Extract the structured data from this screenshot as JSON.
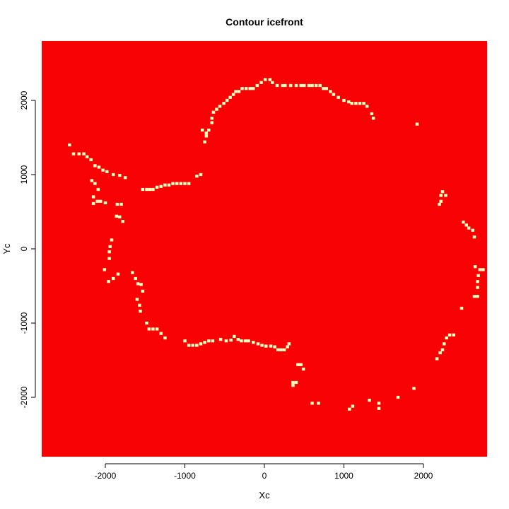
{
  "chart_data": {
    "type": "heatmap",
    "title": "Contour icefront",
    "xlabel": "Xc",
    "ylabel": "Yc",
    "xlim": [
      -2800,
      2800
    ],
    "ylim": [
      -2800,
      2800
    ],
    "x_ticks": [
      -2000,
      -1000,
      0,
      1000,
      2000
    ],
    "y_ticks": [
      -2000,
      -1000,
      0,
      1000,
      2000
    ],
    "x_tick_labels": [
      "-2000",
      "-1000",
      "0",
      "1000",
      "2000"
    ],
    "y_tick_labels": [
      "-2000",
      "-1000",
      "0",
      "1000",
      "2000"
    ],
    "background_color": "#F90206",
    "contour_color": "#FFFFBF",
    "cell_size": 40,
    "contour_cells": [
      [
        -2450,
        1400
      ],
      [
        -2400,
        1280
      ],
      [
        -2330,
        1280
      ],
      [
        -2270,
        1280
      ],
      [
        -2230,
        1240
      ],
      [
        -2180,
        1200
      ],
      [
        -2130,
        1120
      ],
      [
        -2080,
        1100
      ],
      [
        -2030,
        1060
      ],
      [
        -1980,
        1040
      ],
      [
        -1900,
        1000
      ],
      [
        -1820,
        990
      ],
      [
        -1750,
        960
      ],
      [
        -2170,
        920
      ],
      [
        -2130,
        880
      ],
      [
        -2090,
        800
      ],
      [
        -2150,
        700
      ],
      [
        -2150,
        610
      ],
      [
        -2100,
        640
      ],
      [
        -2060,
        640
      ],
      [
        -2000,
        620
      ],
      [
        -1850,
        600
      ],
      [
        -1800,
        600
      ],
      [
        -1860,
        440
      ],
      [
        -1820,
        430
      ],
      [
        -1780,
        370
      ],
      [
        -1920,
        120
      ],
      [
        -1940,
        30
      ],
      [
        -1950,
        -40
      ],
      [
        -1950,
        -130
      ],
      [
        -2010,
        -280
      ],
      [
        -1960,
        -440
      ],
      [
        -1900,
        -400
      ],
      [
        -1840,
        -340
      ],
      [
        -1660,
        -320
      ],
      [
        -1620,
        -400
      ],
      [
        -1590,
        -470
      ],
      [
        -1550,
        -480
      ],
      [
        -1530,
        -570
      ],
      [
        -1600,
        -680
      ],
      [
        -1570,
        -760
      ],
      [
        -1560,
        -840
      ],
      [
        -1480,
        -1000
      ],
      [
        -1450,
        -1080
      ],
      [
        -1400,
        -1080
      ],
      [
        -1350,
        -1080
      ],
      [
        -1300,
        -1140
      ],
      [
        -1250,
        -1200
      ],
      [
        -1000,
        -1240
      ],
      [
        -950,
        -1300
      ],
      [
        -900,
        -1300
      ],
      [
        -850,
        -1300
      ],
      [
        -800,
        -1280
      ],
      [
        -750,
        -1260
      ],
      [
        -700,
        -1240
      ],
      [
        -650,
        -1240
      ],
      [
        -550,
        -1220
      ],
      [
        -480,
        -1240
      ],
      [
        -420,
        -1230
      ],
      [
        -380,
        -1180
      ],
      [
        -330,
        -1220
      ],
      [
        -290,
        -1240
      ],
      [
        -240,
        -1240
      ],
      [
        -200,
        -1240
      ],
      [
        -140,
        -1260
      ],
      [
        -80,
        -1280
      ],
      [
        -30,
        -1300
      ],
      [
        20,
        -1310
      ],
      [
        80,
        -1310
      ],
      [
        130,
        -1320
      ],
      [
        170,
        -1360
      ],
      [
        210,
        -1360
      ],
      [
        250,
        -1360
      ],
      [
        290,
        -1320
      ],
      [
        310,
        -1280
      ],
      [
        420,
        -1560
      ],
      [
        460,
        -1560
      ],
      [
        490,
        -1620
      ],
      [
        360,
        -1800
      ],
      [
        400,
        -1800
      ],
      [
        360,
        -1840
      ],
      [
        600,
        -2080
      ],
      [
        680,
        -2080
      ],
      [
        1070,
        -2160
      ],
      [
        1110,
        -2120
      ],
      [
        1320,
        -2040
      ],
      [
        1440,
        -2080
      ],
      [
        1440,
        -2150
      ],
      [
        1680,
        -2000
      ],
      [
        1880,
        -1880
      ],
      [
        2170,
        -1480
      ],
      [
        2210,
        -1400
      ],
      [
        2240,
        -1360
      ],
      [
        2260,
        -1280
      ],
      [
        2290,
        -1200
      ],
      [
        2330,
        -1160
      ],
      [
        2380,
        -1160
      ],
      [
        2480,
        -800
      ],
      [
        2640,
        -640
      ],
      [
        2680,
        -640
      ],
      [
        2680,
        -520
      ],
      [
        2680,
        -440
      ],
      [
        2690,
        -360
      ],
      [
        2710,
        -280
      ],
      [
        2750,
        -280
      ],
      [
        2650,
        -240
      ],
      [
        2500,
        360
      ],
      [
        2540,
        320
      ],
      [
        2570,
        280
      ],
      [
        2620,
        250
      ],
      [
        2640,
        160
      ],
      [
        2200,
        600
      ],
      [
        2220,
        640
      ],
      [
        2220,
        720
      ],
      [
        2240,
        770
      ],
      [
        2280,
        720
      ],
      [
        1920,
        1680
      ],
      [
        1370,
        1760
      ],
      [
        1350,
        1820
      ],
      [
        1290,
        1920
      ],
      [
        1250,
        1960
      ],
      [
        1200,
        1960
      ],
      [
        1150,
        1960
      ],
      [
        1100,
        1960
      ],
      [
        1060,
        1980
      ],
      [
        1000,
        2000
      ],
      [
        930,
        2040
      ],
      [
        870,
        2080
      ],
      [
        830,
        2120
      ],
      [
        780,
        2160
      ],
      [
        740,
        2160
      ],
      [
        700,
        2200
      ],
      [
        650,
        2200
      ],
      [
        600,
        2200
      ],
      [
        560,
        2200
      ],
      [
        500,
        2200
      ],
      [
        460,
        2200
      ],
      [
        400,
        2200
      ],
      [
        330,
        2200
      ],
      [
        260,
        2200
      ],
      [
        230,
        2200
      ],
      [
        160,
        2200
      ],
      [
        100,
        2240
      ],
      [
        70,
        2280
      ],
      [
        10,
        2280
      ],
      [
        -40,
        2240
      ],
      [
        -90,
        2200
      ],
      [
        -140,
        2160
      ],
      [
        -180,
        2160
      ],
      [
        -230,
        2160
      ],
      [
        -280,
        2160
      ],
      [
        -320,
        2120
      ],
      [
        -360,
        2120
      ],
      [
        -390,
        2080
      ],
      [
        -430,
        2040
      ],
      [
        -470,
        2000
      ],
      [
        -510,
        1960
      ],
      [
        -560,
        1920
      ],
      [
        -600,
        1880
      ],
      [
        -640,
        1840
      ],
      [
        -660,
        1760
      ],
      [
        -660,
        1700
      ],
      [
        -700,
        1600
      ],
      [
        -730,
        1560
      ],
      [
        -780,
        1600
      ],
      [
        -730,
        1520
      ],
      [
        -750,
        1440
      ],
      [
        -800,
        1000
      ],
      [
        -850,
        980
      ],
      [
        -950,
        880
      ],
      [
        -1000,
        880
      ],
      [
        -1050,
        880
      ],
      [
        -1100,
        880
      ],
      [
        -1150,
        880
      ],
      [
        -1200,
        860
      ],
      [
        -1250,
        860
      ],
      [
        -1300,
        840
      ],
      [
        -1350,
        830
      ],
      [
        -1400,
        800
      ],
      [
        -1440,
        800
      ],
      [
        -1480,
        800
      ],
      [
        -1530,
        800
      ]
    ]
  }
}
